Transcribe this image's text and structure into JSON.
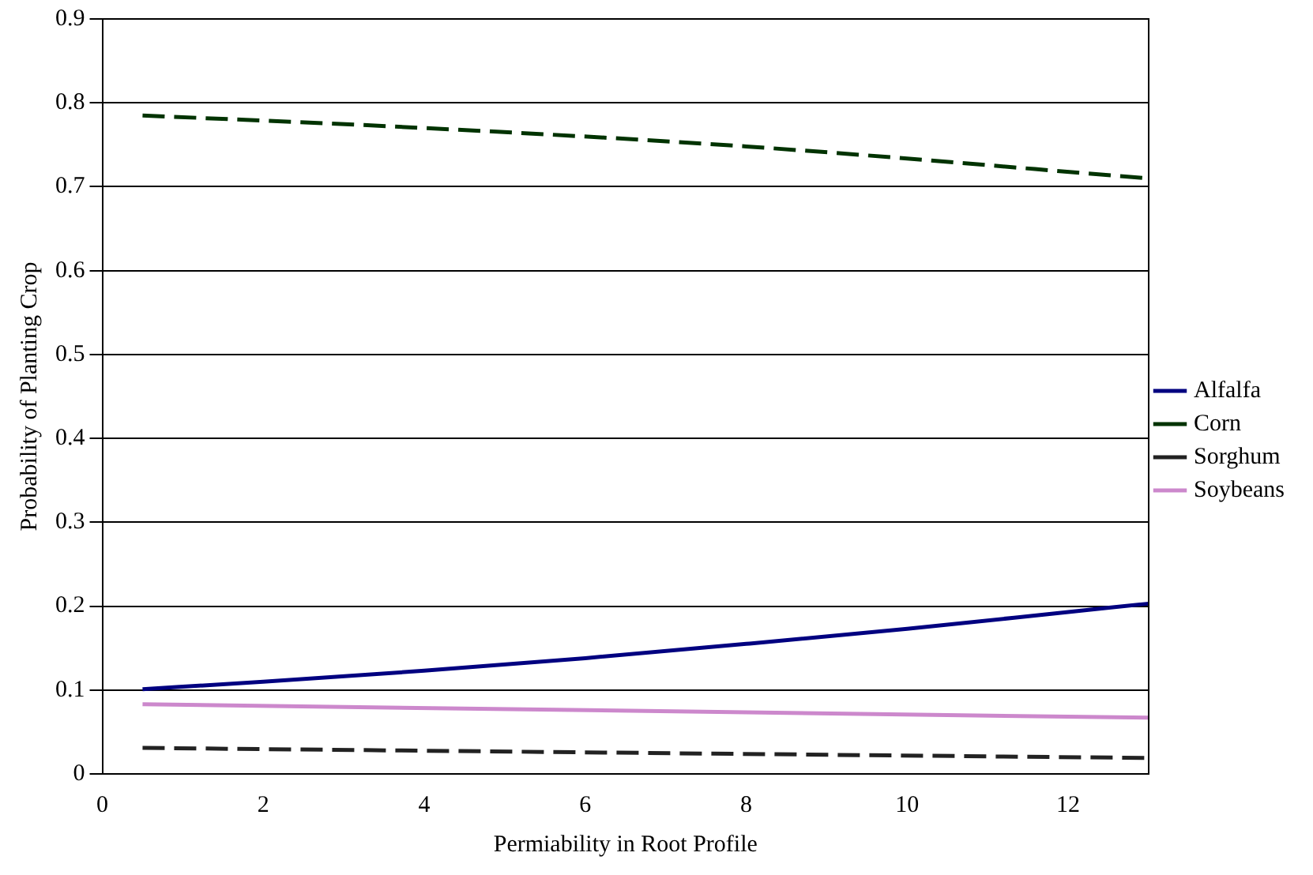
{
  "chart_data": {
    "type": "line",
    "xlabel": "Permiability in Root Profile",
    "ylabel": "Probability of Planting Crop",
    "xlim": [
      0,
      13
    ],
    "xticks": [
      0,
      2,
      4,
      6,
      8,
      10,
      12
    ],
    "ylim": [
      0,
      0.9
    ],
    "yticks": [
      0,
      0.1,
      0.2,
      0.3,
      0.4,
      0.5,
      0.6,
      0.7,
      0.8,
      0.9
    ],
    "grid": "y",
    "legend": "right",
    "marker": "none",
    "series": [
      {
        "name": "Alfalfa",
        "color": "#000080",
        "line_style": "solid",
        "x": [
          0.5,
          2,
          4,
          6,
          8,
          10,
          12,
          13
        ],
        "values": [
          0.101,
          0.11,
          0.123,
          0.138,
          0.155,
          0.173,
          0.193,
          0.203
        ]
      },
      {
        "name": "Corn",
        "color": "#003300",
        "line_style": "dashed",
        "x": [
          0.5,
          4,
          8,
          13
        ],
        "values": [
          0.785,
          0.77,
          0.748,
          0.71
        ]
      },
      {
        "name": "Sorghum",
        "color": "#222222",
        "line_style": "dashed",
        "x": [
          0.5,
          13
        ],
        "values": [
          0.031,
          0.019
        ]
      },
      {
        "name": "Soybeans",
        "color": "#cc88cc",
        "line_style": "solid",
        "x": [
          0.5,
          13
        ],
        "values": [
          0.083,
          0.067
        ]
      }
    ]
  }
}
